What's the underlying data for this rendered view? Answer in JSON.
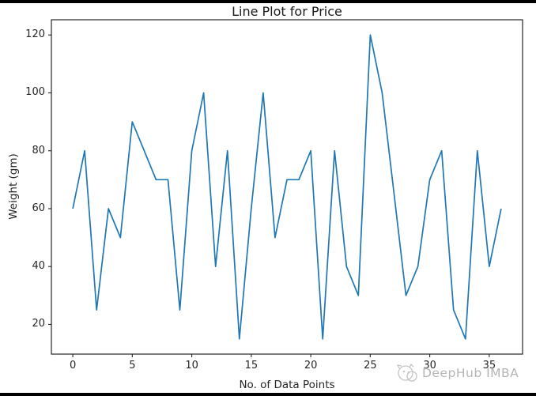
{
  "figure": {
    "watermark": "DeepHub IMBA"
  },
  "chart_data": {
    "type": "line",
    "title": "Line Plot for Price",
    "xlabel": "No. of Data Points",
    "ylabel": "Weight (gm)",
    "x": [
      0,
      1,
      2,
      3,
      4,
      5,
      6,
      7,
      8,
      9,
      10,
      11,
      12,
      13,
      14,
      15,
      16,
      17,
      18,
      19,
      20,
      21,
      22,
      23,
      24,
      25,
      26,
      27,
      28,
      29,
      30,
      31,
      32,
      33,
      34,
      35,
      36
    ],
    "values": [
      60,
      80,
      25,
      60,
      50,
      90,
      80,
      70,
      70,
      25,
      80,
      100,
      40,
      80,
      15,
      60,
      100,
      50,
      70,
      70,
      80,
      15,
      80,
      40,
      30,
      120,
      100,
      65,
      30,
      40,
      70,
      80,
      25,
      15,
      80,
      40,
      60
    ],
    "x_ticks": [
      0,
      5,
      10,
      15,
      20,
      25,
      30,
      35
    ],
    "y_ticks": [
      20,
      40,
      60,
      80,
      100,
      120
    ],
    "xlim": [
      -1.8,
      37.8
    ],
    "ylim": [
      9.75,
      125.25
    ],
    "line_color": "#1f77b4",
    "axis_color": "#262626",
    "grid": false,
    "legend": null
  }
}
